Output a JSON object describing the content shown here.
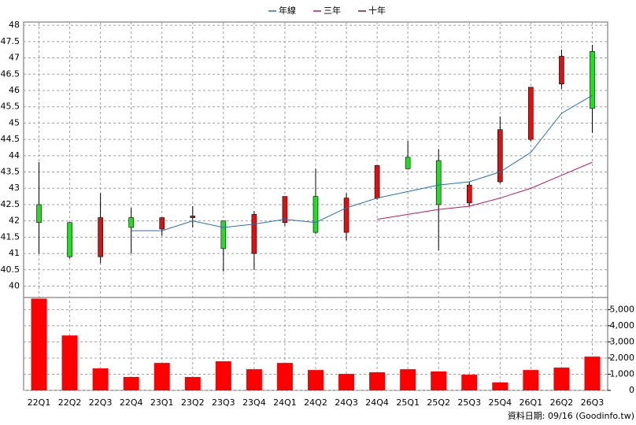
{
  "chart_data": {
    "type": "candlestick",
    "categories": [
      "22Q1",
      "22Q2",
      "22Q3",
      "22Q4",
      "23Q1",
      "23Q2",
      "23Q3",
      "23Q4",
      "24Q1",
      "24Q2",
      "24Q3",
      "24Q4",
      "25Q1",
      "25Q2",
      "25Q3",
      "25Q4",
      "26Q1",
      "26Q2",
      "26Q3"
    ],
    "candles": {
      "open": [
        42.5,
        41.95,
        40.9,
        42.1,
        41.75,
        42.1,
        42.0,
        41.0,
        41.95,
        42.75,
        41.65,
        42.7,
        43.95,
        43.85,
        42.55,
        43.2,
        44.5,
        46.2,
        47.2
      ],
      "high": [
        43.8,
        41.95,
        42.85,
        42.4,
        42.1,
        42.45,
        42.0,
        42.3,
        42.75,
        43.6,
        42.85,
        43.7,
        44.45,
        44.2,
        43.2,
        45.2,
        46.1,
        47.25,
        47.4
      ],
      "low": [
        41.0,
        40.85,
        40.7,
        41.0,
        41.55,
        41.8,
        40.45,
        40.5,
        41.85,
        41.6,
        41.4,
        42.65,
        43.6,
        41.1,
        42.45,
        43.15,
        44.45,
        46.05,
        44.7
      ],
      "close": [
        41.95,
        40.9,
        42.1,
        41.8,
        42.1,
        42.15,
        41.15,
        42.2,
        42.75,
        41.65,
        42.7,
        43.7,
        43.6,
        42.5,
        43.1,
        44.8,
        46.1,
        47.05,
        45.45
      ],
      "up_color": "#e01010",
      "down_color": "#22dd22"
    },
    "series": [
      {
        "name": "年線",
        "color": "#1f6fc8",
        "values": [
          null,
          null,
          null,
          41.7,
          41.7,
          42.0,
          41.8,
          41.9,
          42.05,
          41.95,
          42.4,
          42.7,
          42.9,
          43.1,
          43.2,
          43.5,
          44.1,
          45.3,
          45.85
        ]
      },
      {
        "name": "三年",
        "color": "#d0105a",
        "values": [
          null,
          null,
          null,
          null,
          null,
          null,
          null,
          null,
          null,
          null,
          null,
          42.05,
          42.2,
          42.35,
          42.45,
          42.7,
          43.0,
          43.4,
          43.8
        ]
      },
      {
        "name": "十年",
        "color": "#8a1030",
        "values": [
          null,
          null,
          null,
          null,
          null,
          null,
          null,
          null,
          null,
          null,
          null,
          null,
          null,
          null,
          null,
          null,
          null,
          null,
          null
        ]
      }
    ],
    "volume": {
      "color": "#ff0000",
      "axis": "y2",
      "values": [
        5680,
        3400,
        1360,
        830,
        1700,
        830,
        1800,
        1310,
        1700,
        1260,
        1020,
        1120,
        1310,
        1170,
        970,
        490,
        1260,
        1410,
        2090
      ]
    },
    "ylim": [
      39.65,
      48.1
    ],
    "yticks": [
      40,
      40.5,
      41,
      41.5,
      42,
      42.5,
      43,
      43.5,
      44,
      44.5,
      45,
      45.5,
      46,
      46.5,
      47,
      47.5,
      48
    ],
    "y2lim": [
      0,
      5750
    ],
    "y2ticks": [
      0,
      {
        "value": 1000,
        "label": "1,000"
      },
      {
        "value": 2000,
        "label": "2,000"
      },
      {
        "value": 3000,
        "label": "3,000"
      },
      {
        "value": 4000,
        "label": "4,000"
      },
      {
        "value": 5000,
        "label": "5,000"
      }
    ],
    "grid": true,
    "legend": "top",
    "footer": "資料日期: 09/16 (Goodinfo.tw)"
  }
}
